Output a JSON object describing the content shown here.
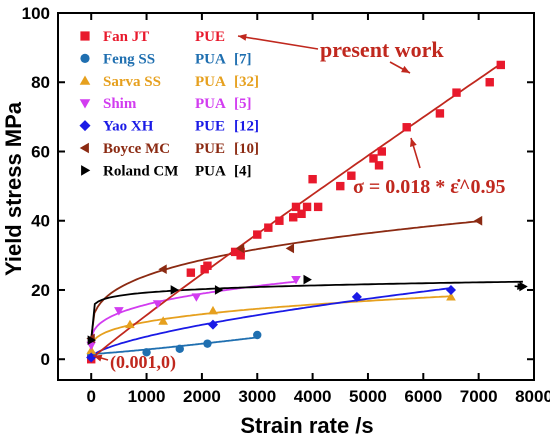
{
  "chart_data": {
    "type": "scatter",
    "xlabel": "Strain rate /s",
    "ylabel": "Yield stress MPa",
    "xlim": [
      -600,
      8000
    ],
    "ylim": [
      -6,
      100
    ],
    "x_ticks": [
      "0",
      "1000",
      "2000",
      "3000",
      "4000",
      "5000",
      "6000",
      "7000",
      "8000"
    ],
    "y_ticks": [
      "0",
      "20",
      "40",
      "60",
      "80",
      "100"
    ],
    "x_tick_values": [
      0,
      1000,
      2000,
      3000,
      4000,
      5000,
      6000,
      7000,
      8000
    ],
    "y_tick_values": [
      0,
      20,
      40,
      60,
      80,
      100
    ],
    "grid": false,
    "legend_position": "top-left",
    "series": [
      {
        "name": "Fan JT",
        "material": "PUE",
        "ref": "",
        "color": "#e8192c",
        "marker": "square",
        "x": [
          0,
          2050,
          1800,
          2100,
          2600,
          2700,
          2700,
          3000,
          3200,
          3400,
          3650,
          3700,
          3800,
          3900,
          4000,
          4100,
          4500,
          4700,
          5100,
          5200,
          5250,
          5700,
          6300,
          6600,
          7200,
          7400
        ],
        "y": [
          0,
          26,
          25,
          27,
          31,
          30,
          31,
          36,
          38,
          40,
          41,
          44,
          42,
          44,
          52,
          44,
          50,
          53,
          58,
          56,
          60,
          67,
          71,
          77,
          80,
          85
        ]
      },
      {
        "name": "Feng SS",
        "material": "PUA",
        "ref": "[7]",
        "color": "#1f6fb0",
        "marker": "circle",
        "x": [
          0,
          1000,
          1600,
          2100,
          3000
        ],
        "y": [
          1.5,
          2,
          3,
          4.5,
          7
        ]
      },
      {
        "name": "Sarva SS",
        "material": "PUA",
        "ref": "[32]",
        "color": "#e6a01e",
        "marker": "triangle-up",
        "x": [
          0,
          700,
          1300,
          2200,
          6500
        ],
        "y": [
          2.5,
          10,
          11,
          14,
          18
        ]
      },
      {
        "name": "Shim",
        "material": "PUA",
        "ref": "[5]",
        "color": "#d23cf0",
        "marker": "triangle-down",
        "x": [
          0,
          500,
          1200,
          1900,
          3700
        ],
        "y": [
          4,
          14,
          16,
          18,
          23
        ]
      },
      {
        "name": "Yao XH",
        "material": "PUE",
        "ref": "[12]",
        "color": "#1a1ae6",
        "marker": "diamond",
        "x": [
          0,
          2200,
          4800,
          6500
        ],
        "y": [
          0.5,
          10,
          18,
          20
        ]
      },
      {
        "name": "Boyce MC",
        "material": "PUE",
        "ref": "[10]",
        "color": "#8b2a12",
        "marker": "triangle-left",
        "x": [
          0,
          1300,
          2700,
          3600,
          7000
        ],
        "y": [
          6,
          26,
          32,
          32,
          40
        ]
      },
      {
        "name": "Roland CM",
        "material": "PUA",
        "ref": "[4]",
        "color": "#000000",
        "marker": "triangle-right",
        "x": [
          0,
          1500,
          2300,
          3900,
          7800
        ],
        "y": [
          5.5,
          20,
          20,
          23,
          21
        ]
      }
    ],
    "fit_line": {
      "equation": "σ = 0.018 * ε̇^0.95",
      "coef": 0.018,
      "exponent": 0.95,
      "color": "#c0281e"
    },
    "annotations": [
      {
        "text": "present work",
        "color": "#c0281e"
      },
      {
        "text": "(0.001,0)",
        "color": "#c0281e"
      }
    ]
  }
}
